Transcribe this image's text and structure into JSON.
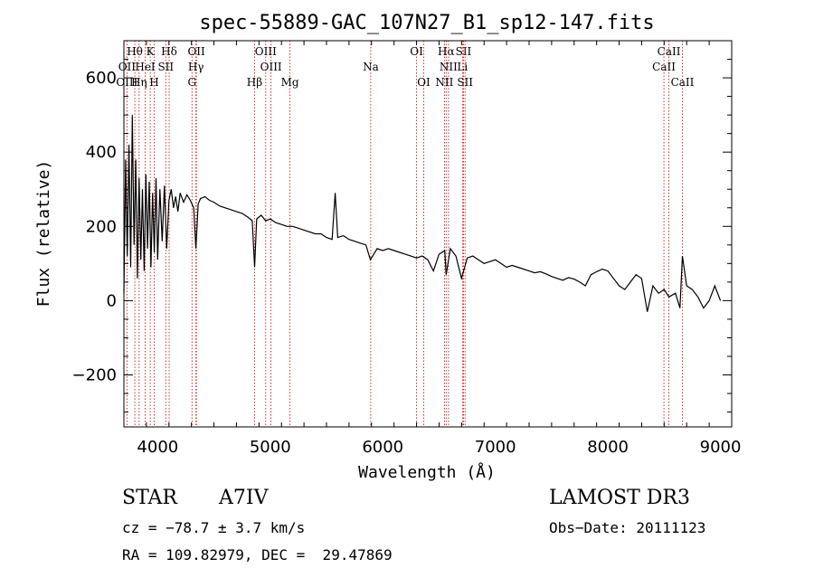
{
  "chart_data": {
    "type": "line",
    "title": "spec-55889-GAC_107N27_B1_sp12-147.fits",
    "xlabel": "Wavelength (Å)",
    "ylabel": "Flux (relative)",
    "xlim": [
      3700,
      9100
    ],
    "ylim": [
      -340,
      700
    ],
    "xticks": [
      4000,
      5000,
      6000,
      7000,
      8000,
      9000
    ],
    "yticks": [
      -200,
      0,
      200,
      400,
      600
    ],
    "grid": false,
    "line_color": "#000000",
    "marker_color": "#cc0000",
    "series": [
      {
        "x": [
          3700,
          3715,
          3730,
          3745,
          3760,
          3775,
          3790,
          3805,
          3820,
          3835,
          3850,
          3865,
          3880,
          3895,
          3910,
          3925,
          3940,
          3955,
          3970,
          3985,
          4000,
          4020,
          4040,
          4060,
          4080,
          4100,
          4120,
          4140,
          4160,
          4180,
          4200,
          4230,
          4260,
          4290,
          4320,
          4340,
          4360,
          4380,
          4420,
          4460,
          4500,
          4550,
          4600,
          4650,
          4700,
          4750,
          4800,
          4840,
          4861,
          4880,
          4920,
          4960,
          5000,
          5050,
          5100,
          5150,
          5200,
          5250,
          5300,
          5350,
          5400,
          5450,
          5500,
          5550,
          5577,
          5600,
          5650,
          5700,
          5750,
          5800,
          5850,
          5890,
          5950,
          6000,
          6050,
          6100,
          6150,
          6200,
          6250,
          6300,
          6350,
          6400,
          6450,
          6500,
          6550,
          6563,
          6600,
          6650,
          6700,
          6750,
          6800,
          6850,
          6900,
          6950,
          7000,
          7050,
          7100,
          7150,
          7200,
          7250,
          7300,
          7350,
          7400,
          7450,
          7500,
          7550,
          7600,
          7650,
          7700,
          7750,
          7800,
          7850,
          7900,
          7950,
          8000,
          8050,
          8100,
          8150,
          8200,
          8250,
          8300,
          8350,
          8400,
          8450,
          8500,
          8542,
          8600,
          8640,
          8662,
          8700,
          8750,
          8800,
          8850,
          8900,
          8950,
          9000
        ],
        "y": [
          20,
          380,
          120,
          420,
          90,
          500,
          150,
          380,
          60,
          330,
          110,
          300,
          80,
          340,
          140,
          320,
          90,
          290,
          130,
          330,
          110,
          300,
          160,
          310,
          140,
          270,
          300,
          250,
          280,
          240,
          290,
          265,
          285,
          270,
          250,
          140,
          260,
          275,
          280,
          270,
          265,
          255,
          250,
          245,
          240,
          235,
          225,
          215,
          90,
          220,
          230,
          215,
          220,
          210,
          205,
          200,
          200,
          195,
          190,
          185,
          180,
          180,
          170,
          165,
          290,
          170,
          175,
          165,
          160,
          155,
          150,
          110,
          140,
          135,
          140,
          135,
          130,
          125,
          120,
          115,
          120,
          110,
          80,
          125,
          135,
          70,
          140,
          120,
          60,
          115,
          120,
          110,
          100,
          105,
          110,
          100,
          90,
          95,
          90,
          85,
          80,
          75,
          78,
          72,
          65,
          60,
          55,
          62,
          58,
          50,
          40,
          70,
          78,
          85,
          80,
          60,
          40,
          30,
          50,
          70,
          60,
          -30,
          40,
          20,
          30,
          10,
          20,
          -20,
          120,
          40,
          30,
          10,
          -20,
          0,
          40,
          0
        ]
      }
    ],
    "lines": [
      {
        "name": "Hθ",
        "wavelength": 3797,
        "row": 1
      },
      {
        "name": "K",
        "wavelength": 3934,
        "row": 1
      },
      {
        "name": "Hδ",
        "wavelength": 4102,
        "row": 1
      },
      {
        "name": "OII",
        "wavelength": 4344,
        "row": 1
      },
      {
        "name": "OIII",
        "wavelength": 4960,
        "row": 1
      },
      {
        "name": "OI",
        "wavelength": 6300,
        "row": 1
      },
      {
        "name": "Hα",
        "wavelength": 6563,
        "row": 1
      },
      {
        "name": "SII",
        "wavelength": 6717,
        "row": 1
      },
      {
        "name": "CaII",
        "wavelength": 8542,
        "row": 1
      },
      {
        "name": "OII",
        "wavelength": 3727,
        "row": 2
      },
      {
        "name": "HeI",
        "wavelength": 3889,
        "row": 2
      },
      {
        "name": "SII",
        "wavelength": 4072,
        "row": 2
      },
      {
        "name": "Hγ",
        "wavelength": 4340,
        "row": 2
      },
      {
        "name": "OIII",
        "wavelength": 5007,
        "row": 2
      },
      {
        "name": "Na",
        "wavelength": 5893,
        "row": 2
      },
      {
        "name": "NII",
        "wavelength": 6584,
        "row": 2
      },
      {
        "name": "Li",
        "wavelength": 6708,
        "row": 2
      },
      {
        "name": "CaII",
        "wavelength": 8498,
        "row": 2
      },
      {
        "name": "OIII",
        "wavelength": 3727,
        "row": 3
      },
      {
        "name": "Hη",
        "wavelength": 3835,
        "row": 3
      },
      {
        "name": "H",
        "wavelength": 3969,
        "row": 3
      },
      {
        "name": "G",
        "wavelength": 4305,
        "row": 3
      },
      {
        "name": "Hβ",
        "wavelength": 4861,
        "row": 3
      },
      {
        "name": "Mg",
        "wavelength": 5175,
        "row": 3
      },
      {
        "name": "OI",
        "wavelength": 6364,
        "row": 3
      },
      {
        "name": "NII",
        "wavelength": 6548,
        "row": 3
      },
      {
        "name": "SII",
        "wavelength": 6731,
        "row": 3
      },
      {
        "name": "CaII",
        "wavelength": 8662,
        "row": 3
      }
    ]
  },
  "info": {
    "object_type": "STAR",
    "subclass": "A7IV",
    "redshift": "cz = −78.7 ± 3.7 km/s",
    "coordinates": "RA = 109.82979, DEC =  29.47869",
    "survey": "LAMOST DR3",
    "obs_date": "Obs−Date: 20111123"
  }
}
